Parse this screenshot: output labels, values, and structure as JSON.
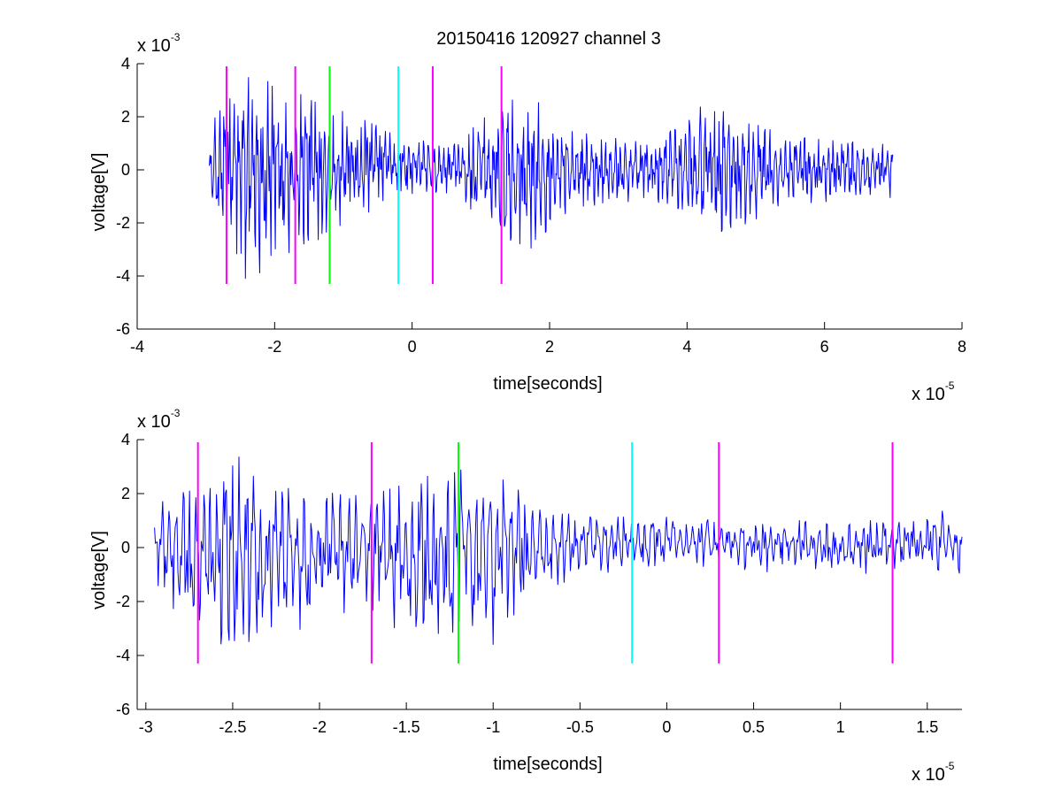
{
  "title": "20150416 120927 channel 3",
  "colors": {
    "signal": "#0000ff",
    "magenta": "#ff00ff",
    "green": "#00ff00",
    "cyan": "#00ffff",
    "axis": "#000000"
  },
  "chart_data": [
    {
      "type": "line",
      "title": "20150416 120927 channel 3",
      "xlabel": "time[seconds]",
      "ylabel": "voltage[V]",
      "xlim": [
        -4,
        8
      ],
      "ylim": [
        -6,
        4
      ],
      "x_scale_label": "x 10",
      "x_scale_exp": "-5",
      "y_scale_label": "x 10",
      "y_scale_exp": "-3",
      "x_ticks": [
        -4,
        -2,
        0,
        2,
        4,
        6,
        8
      ],
      "x_tick_labels": [
        "-4",
        "-2",
        "0",
        "2",
        "4",
        "6",
        "8"
      ],
      "y_ticks": [
        -6,
        -4,
        -2,
        0,
        2,
        4
      ],
      "y_tick_labels": [
        "-6",
        "-4",
        "-2",
        "0",
        "2",
        "4"
      ],
      "series": [
        {
          "color": "#0000ff",
          "x_range": [
            -2.95,
            7.0
          ],
          "amplitude_envelope": [
            1.6,
            3.4,
            3.2,
            2.3,
            1.8,
            1.2,
            1.0,
            0.9,
            2.8,
            2.6,
            1.4,
            1.2,
            1.0,
            1.5,
            2.7,
            1.8,
            1.2,
            1.1,
            1.0,
            0.9
          ],
          "baseline": [
            0.0,
            0.0,
            0.0,
            0.1,
            0.2,
            0.2,
            0.1,
            0.0,
            0.0,
            0.0,
            0.0,
            0.0,
            0.0,
            0.0,
            0.0,
            0.0,
            0.0,
            0.0,
            0.0,
            0.0
          ]
        }
      ],
      "markers": [
        {
          "x": -2.7,
          "color": "#ff00ff",
          "y_range": [
            -4.3,
            3.9
          ]
        },
        {
          "x": -1.7,
          "color": "#ff00ff",
          "y_range": [
            -4.3,
            3.9
          ]
        },
        {
          "x": -1.2,
          "color": "#00ff00",
          "y_range": [
            -4.3,
            3.9
          ]
        },
        {
          "x": -0.2,
          "color": "#00ffff",
          "y_range": [
            -4.3,
            3.9
          ]
        },
        {
          "x": 0.3,
          "color": "#ff00ff",
          "y_range": [
            -4.3,
            3.9
          ]
        },
        {
          "x": 1.3,
          "color": "#ff00ff",
          "y_range": [
            -4.3,
            3.9
          ]
        }
      ]
    },
    {
      "type": "line",
      "xlabel": "time[seconds]",
      "ylabel": "voltage[V]",
      "xlim": [
        -3.05,
        1.7
      ],
      "ylim": [
        -6,
        4
      ],
      "x_scale_label": "x 10",
      "x_scale_exp": "-5",
      "y_scale_label": "x 10",
      "y_scale_exp": "-3",
      "x_ticks": [
        -3,
        -2.5,
        -2,
        -1.5,
        -1,
        -0.5,
        0,
        0.5,
        1,
        1.5
      ],
      "x_tick_labels": [
        "-3",
        "-2.5",
        "-2",
        "-1.5",
        "-1",
        "-0.5",
        "0",
        "0.5",
        "1",
        "1.5"
      ],
      "y_ticks": [
        -6,
        -4,
        -2,
        0,
        2,
        4
      ],
      "y_tick_labels": [
        "-6",
        "-4",
        "-2",
        "0",
        "2",
        "4"
      ],
      "series": [
        {
          "color": "#0000ff",
          "x_range": [
            -2.95,
            1.7
          ],
          "amplitude_envelope": [
            1.5,
            2.4,
            3.6,
            2.4,
            2.2,
            1.8,
            2.6,
            3.2,
            2.8,
            1.6,
            1.0,
            0.9,
            0.9,
            0.8,
            0.8,
            0.9,
            0.8,
            0.9,
            1.0,
            1.2
          ],
          "baseline": [
            0.0,
            -0.2,
            -0.4,
            -0.3,
            -0.2,
            0.0,
            -0.3,
            -0.4,
            -0.2,
            0.0,
            0.1,
            0.2,
            0.2,
            0.2,
            0.1,
            0.1,
            0.0,
            0.1,
            0.2,
            0.2
          ]
        }
      ],
      "markers": [
        {
          "x": -2.7,
          "color": "#ff00ff",
          "y_range": [
            -4.3,
            3.9
          ]
        },
        {
          "x": -1.7,
          "color": "#ff00ff",
          "y_range": [
            -4.3,
            3.9
          ]
        },
        {
          "x": -1.2,
          "color": "#00ff00",
          "y_range": [
            -4.3,
            3.9
          ]
        },
        {
          "x": -0.2,
          "color": "#00ffff",
          "y_range": [
            -4.3,
            3.9
          ]
        },
        {
          "x": 0.3,
          "color": "#ff00ff",
          "y_range": [
            -4.3,
            3.9
          ]
        },
        {
          "x": 1.3,
          "color": "#ff00ff",
          "y_range": [
            -4.3,
            3.9
          ]
        }
      ]
    }
  ]
}
